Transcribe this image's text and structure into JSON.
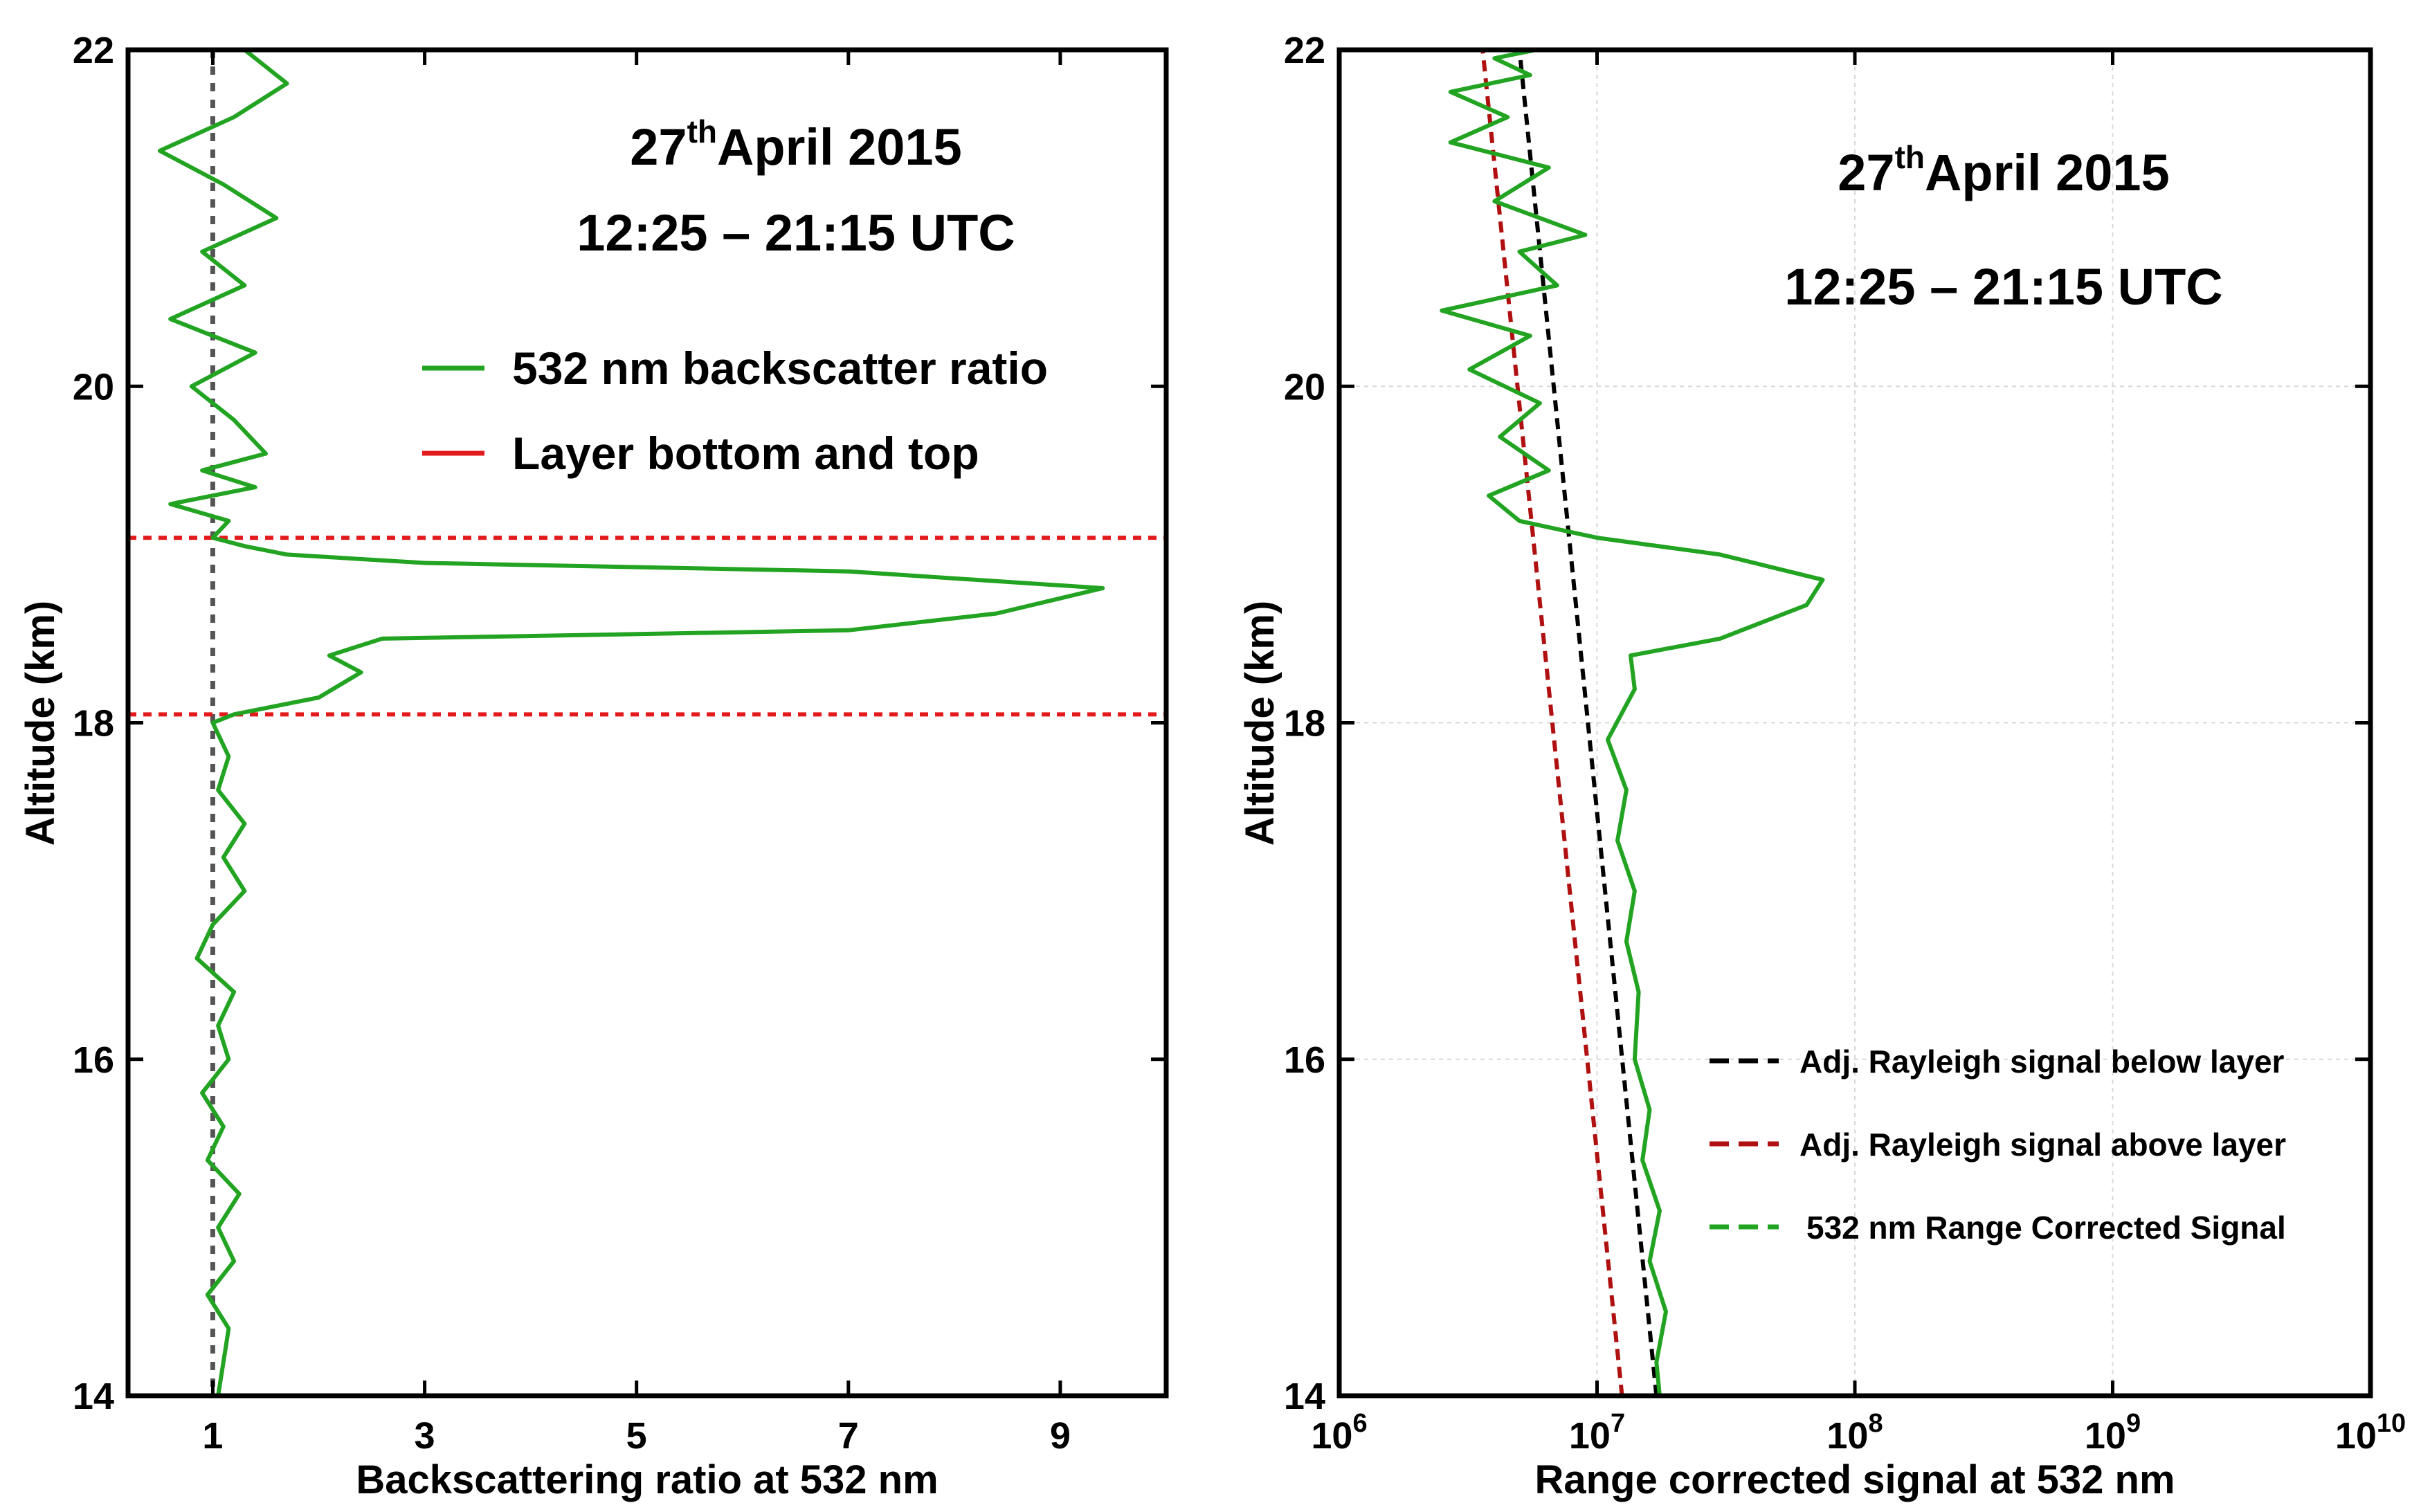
{
  "chart_data": [
    {
      "type": "line",
      "title_main": "27",
      "title_sup": "th",
      "title_rest": "April 2015",
      "subtitle": "12:25 – 21:15 UTC",
      "xlabel": "Backscattering ratio at 532 nm",
      "ylabel": "Altitude (km)",
      "xlim": [
        0.2,
        10
      ],
      "ylim": [
        14,
        22
      ],
      "x_ticks": [
        1,
        3,
        5,
        7,
        9
      ],
      "x_tick_labels": [
        "1",
        "3",
        "5",
        "7",
        "9"
      ],
      "y_ticks": [
        14,
        16,
        18,
        20,
        22
      ],
      "y_tick_labels": [
        "14",
        "16",
        "18",
        "20",
        "22"
      ],
      "reference_line": {
        "x": 1,
        "color": "#555555",
        "style": "dotted"
      },
      "layer_lines": {
        "y": [
          18.05,
          19.1
        ],
        "color": "#e31a1c",
        "style": "dotted"
      },
      "legend": [
        {
          "label": "532 nm backscatter ratio",
          "color": "#22a422"
        },
        {
          "label": "Layer bottom and top",
          "color": "#e31a1c"
        }
      ],
      "series": [
        {
          "name": "532 nm backscatter ratio",
          "color": "#22a422",
          "points": [
            [
              1.05,
              14.0
            ],
            [
              1.1,
              14.2
            ],
            [
              1.15,
              14.4
            ],
            [
              0.95,
              14.6
            ],
            [
              1.2,
              14.8
            ],
            [
              1.05,
              15.0
            ],
            [
              1.25,
              15.2
            ],
            [
              0.95,
              15.4
            ],
            [
              1.1,
              15.6
            ],
            [
              0.9,
              15.8
            ],
            [
              1.15,
              16.0
            ],
            [
              1.05,
              16.2
            ],
            [
              1.2,
              16.4
            ],
            [
              0.85,
              16.6
            ],
            [
              1.0,
              16.8
            ],
            [
              1.3,
              17.0
            ],
            [
              1.1,
              17.2
            ],
            [
              1.3,
              17.4
            ],
            [
              1.05,
              17.6
            ],
            [
              1.15,
              17.8
            ],
            [
              1.0,
              18.0
            ],
            [
              1.2,
              18.05
            ],
            [
              2.0,
              18.15
            ],
            [
              2.4,
              18.3
            ],
            [
              2.1,
              18.4
            ],
            [
              2.6,
              18.5
            ],
            [
              7.0,
              18.55
            ],
            [
              8.4,
              18.65
            ],
            [
              9.4,
              18.8
            ],
            [
              7.0,
              18.9
            ],
            [
              3.0,
              18.95
            ],
            [
              1.7,
              19.0
            ],
            [
              1.3,
              19.05
            ],
            [
              1.0,
              19.1
            ],
            [
              1.15,
              19.2
            ],
            [
              0.6,
              19.3
            ],
            [
              1.4,
              19.4
            ],
            [
              0.9,
              19.5
            ],
            [
              1.5,
              19.6
            ],
            [
              1.2,
              19.8
            ],
            [
              0.8,
              20.0
            ],
            [
              1.4,
              20.2
            ],
            [
              0.6,
              20.4
            ],
            [
              1.3,
              20.6
            ],
            [
              0.9,
              20.8
            ],
            [
              1.6,
              21.0
            ],
            [
              1.1,
              21.2
            ],
            [
              0.5,
              21.4
            ],
            [
              1.2,
              21.6
            ],
            [
              1.7,
              21.8
            ],
            [
              1.3,
              22.0
            ]
          ]
        }
      ]
    },
    {
      "type": "line",
      "title_main": "27",
      "title_sup": "th",
      "title_rest": "April 2015",
      "subtitle": "12:25 – 21:15 UTC",
      "xlabel": "Range corrected signal at 532 nm",
      "ylabel": "Altitude (km)",
      "x_scale": "log",
      "xlim": [
        1000000,
        10000000000
      ],
      "ylim": [
        14,
        22
      ],
      "x_ticks": [
        1000000,
        10000000,
        100000000,
        1000000000,
        10000000000
      ],
      "x_tick_bases": [
        "10",
        "10",
        "10",
        "10",
        "10"
      ],
      "x_tick_exponents": [
        "6",
        "7",
        "8",
        "9",
        "10"
      ],
      "y_ticks": [
        14,
        16,
        18,
        20,
        22
      ],
      "y_tick_labels": [
        "14",
        "16",
        "18",
        "20",
        "22"
      ],
      "grid": true,
      "legend": [
        {
          "label": "Adj. Rayleigh signal below layer",
          "color": "#000000"
        },
        {
          "label": "Adj. Rayleigh signal above layer",
          "color": "#b01010"
        },
        {
          "label": "532 nm Range Corrected Signal",
          "color": "#22a422"
        }
      ],
      "series": [
        {
          "name": "Adj. Rayleigh signal below layer",
          "color": "#000000",
          "style": "dashed",
          "points": [
            [
              17000000,
              14.0
            ],
            [
              5000000,
              22.0
            ]
          ]
        },
        {
          "name": "Adj. Rayleigh signal above layer",
          "color": "#b01010",
          "style": "dashed",
          "points": [
            [
              12500000,
              14.0
            ],
            [
              3600000,
              22.0
            ]
          ]
        },
        {
          "name": "532 nm Range Corrected Signal",
          "color": "#22a422",
          "style": "solid",
          "points": [
            [
              17500000,
              14.0
            ],
            [
              17000000,
              14.2
            ],
            [
              18500000,
              14.5
            ],
            [
              16000000,
              14.8
            ],
            [
              17500000,
              15.1
            ],
            [
              15000000,
              15.4
            ],
            [
              16000000,
              15.7
            ],
            [
              14000000,
              16.0
            ],
            [
              14500000,
              16.4
            ],
            [
              13000000,
              16.7
            ],
            [
              14000000,
              17.0
            ],
            [
              12000000,
              17.3
            ],
            [
              13000000,
              17.6
            ],
            [
              11000000,
              17.9
            ],
            [
              14000000,
              18.2
            ],
            [
              13500000,
              18.4
            ],
            [
              30000000,
              18.5
            ],
            [
              65000000,
              18.7
            ],
            [
              75000000,
              18.85
            ],
            [
              30000000,
              19.0
            ],
            [
              10000000,
              19.1
            ],
            [
              5000000,
              19.2
            ],
            [
              3800000,
              19.35
            ],
            [
              6500000,
              19.5
            ],
            [
              4200000,
              19.7
            ],
            [
              6000000,
              19.9
            ],
            [
              3200000,
              20.1
            ],
            [
              5500000,
              20.3
            ],
            [
              2500000,
              20.45
            ],
            [
              7000000,
              20.6
            ],
            [
              5000000,
              20.8
            ],
            [
              9000000,
              20.9
            ],
            [
              4000000,
              21.1
            ],
            [
              6500000,
              21.3
            ],
            [
              2700000,
              21.45
            ],
            [
              4500000,
              21.6
            ],
            [
              2700000,
              21.75
            ],
            [
              5500000,
              21.85
            ],
            [
              4000000,
              21.95
            ],
            [
              5800000,
              22.0
            ]
          ]
        }
      ]
    }
  ]
}
